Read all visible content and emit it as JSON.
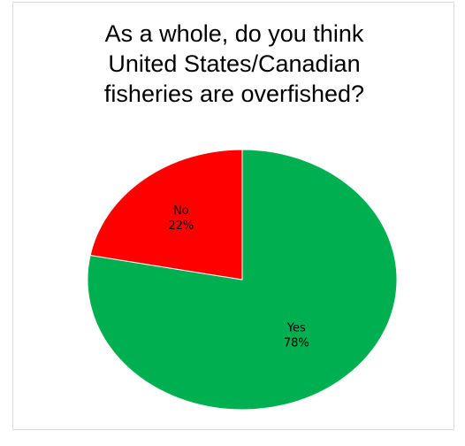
{
  "chart_data": {
    "type": "pie",
    "title_lines": [
      "As a whole, do you think",
      "United States/Canadian",
      "fisheries are overfished?"
    ],
    "slices": [
      {
        "label": "Yes",
        "value": 78,
        "value_label": "78%",
        "color": "#00b050"
      },
      {
        "label": "No",
        "value": 22,
        "value_label": "22%",
        "color": "#ff0000"
      }
    ],
    "start_angle_deg": 0,
    "direction": "clockwise",
    "legend": "none"
  }
}
